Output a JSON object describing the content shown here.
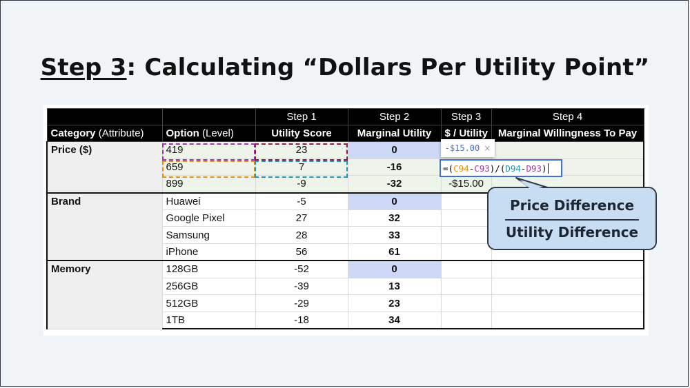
{
  "slide": {
    "title_step": "Step 3",
    "title_rest": ": Calculating “Dollars Per Utility Point”"
  },
  "table": {
    "steps_row": [
      "",
      "",
      "Step 1",
      "Step 2",
      "Step 3",
      "Step 4"
    ],
    "header": {
      "category_bold": "Category",
      "category_rest": " (Attribute)",
      "option_bold": "Option",
      "option_rest": " (Level)",
      "utility_score": "Utility Score",
      "marginal_utility": "Marginal Utility",
      "dollars_per_utility": "$ / Utility",
      "marginal_wtp": "Marginal Willingness To Pay"
    },
    "price": {
      "category": "Price ($)",
      "rows": [
        {
          "option": "419",
          "utility": "23",
          "marginal": "0",
          "dpu": ""
        },
        {
          "option": "659",
          "utility": "7",
          "marginal": "-16",
          "dpu": ""
        },
        {
          "option": "899",
          "utility": "-9",
          "marginal": "-32",
          "dpu": "-$15.00"
        }
      ]
    },
    "brand": {
      "category": "Brand",
      "rows": [
        {
          "option": "Huawei",
          "utility": "-5",
          "marginal": "0"
        },
        {
          "option": "Google Pixel",
          "utility": "27",
          "marginal": "32"
        },
        {
          "option": "Samsung",
          "utility": "28",
          "marginal": "33"
        },
        {
          "option": "iPhone",
          "utility": "56",
          "marginal": "61"
        }
      ]
    },
    "memory": {
      "category": "Memory",
      "rows": [
        {
          "option": "128GB",
          "utility": "-52",
          "marginal": "0"
        },
        {
          "option": "256GB",
          "utility": "-39",
          "marginal": "13"
        },
        {
          "option": "512GB",
          "utility": "-29",
          "marginal": "23"
        },
        {
          "option": "1TB",
          "utility": "-18",
          "marginal": "34"
        }
      ]
    }
  },
  "formula_tooltip": {
    "value": "-$15.00",
    "close_glyph": "×"
  },
  "formula_editor": {
    "eq": "=",
    "open1": "(",
    "ref_c94": "C94",
    "minus1": "-",
    "ref_c93": "C93",
    "mid": ")/(",
    "ref_d94": "D94",
    "minus2": "-",
    "ref_d93": "D93",
    "close": ")"
  },
  "callout": {
    "numerator": "Price Difference",
    "denominator": "Utility Difference"
  },
  "colors": {
    "highlight_blue": "#cdd8f6",
    "price_row_green": "#eef4e9",
    "ref_orange": "#e69013",
    "ref_purple": "#9b3aa6",
    "ref_teal": "#1d96b4",
    "editor_border": "#3f6fd8",
    "callout_fill": "#c9ddf2"
  }
}
